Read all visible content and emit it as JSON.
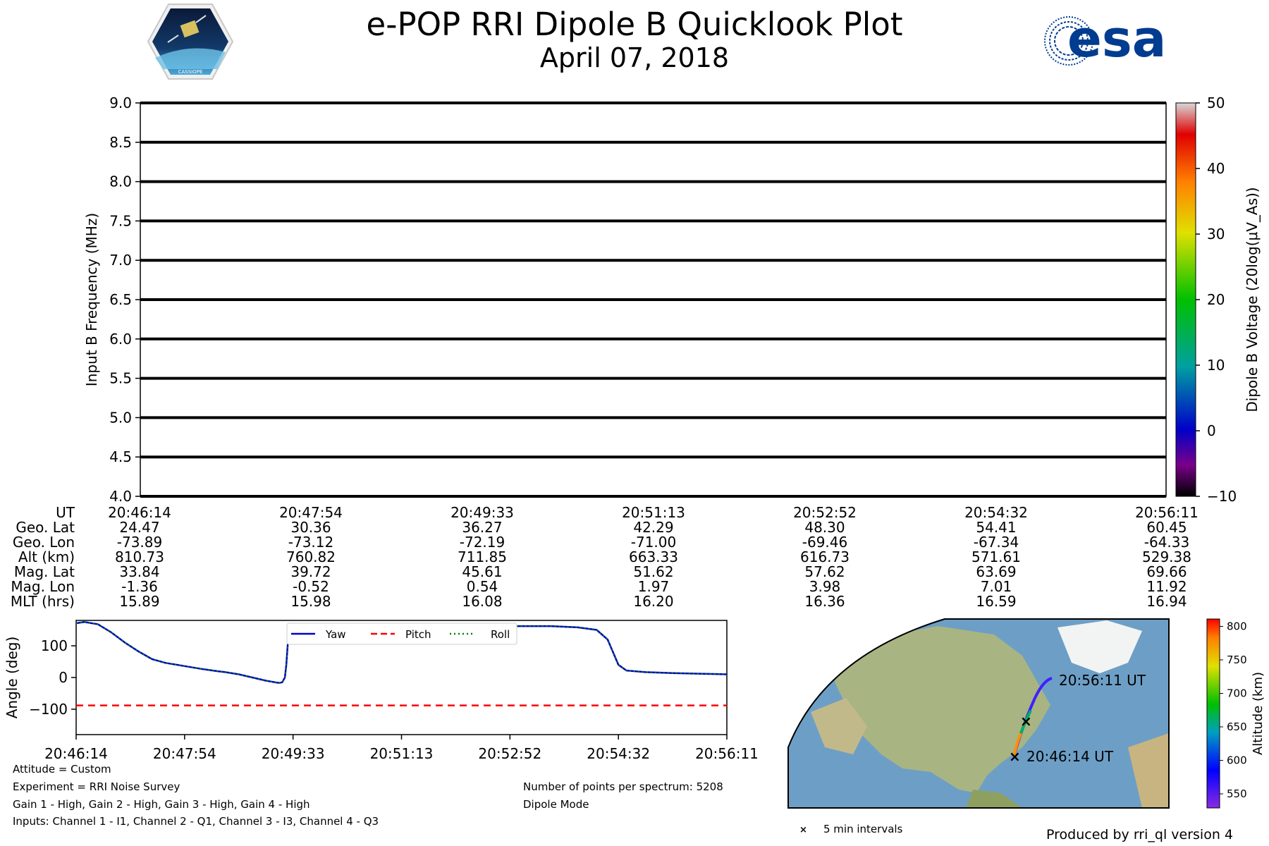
{
  "title": "e-POP RRI Dipole B Quicklook Plot",
  "date": "April 07, 2018",
  "logos": {
    "cassiope": {
      "text": "CASSIOPE"
    },
    "esa": {
      "text": "esa",
      "color": "#003c8f"
    }
  },
  "colors": {
    "yaw": "#0000cc",
    "pitch": "#ff0000",
    "roll": "#008000",
    "line": "#000000"
  },
  "chart_data": [
    {
      "type": "heatmap",
      "ylabel": "Input B Frequency (MHz)",
      "ylim": [
        4.0,
        9.0
      ],
      "yticks": [
        "4.0",
        "4.5",
        "5.0",
        "5.5",
        "6.0",
        "6.5",
        "7.0",
        "7.5",
        "8.0",
        "8.5",
        "9.0"
      ],
      "frequency_lines_mhz": [
        4.0,
        4.5,
        5.0,
        5.5,
        6.0,
        6.5,
        7.0,
        7.5,
        8.0,
        8.5,
        9.0
      ],
      "colorbar": {
        "label": "Dipole B Voltage (20log(μV_As))",
        "range": [
          -10,
          50
        ],
        "ticks": [
          "50",
          "40",
          "30",
          "20",
          "10",
          "0",
          "−10"
        ]
      }
    },
    {
      "type": "line",
      "ylabel": "Angle (deg)",
      "ylim": [
        -180,
        180
      ],
      "yticks": [
        "100",
        "0",
        "−100"
      ],
      "x": [
        "20:46:14",
        "20:47:54",
        "20:49:33",
        "20:51:13",
        "20:52:52",
        "20:54:32",
        "20:56:11"
      ],
      "legend": "top-center",
      "series": [
        {
          "name": "Yaw",
          "style": "solid",
          "points": [
            [
              0,
              171
            ],
            [
              0.03,
              175
            ],
            [
              0.08,
              168
            ],
            [
              0.13,
              142
            ],
            [
              0.18,
              110
            ],
            [
              0.23,
              82
            ],
            [
              0.28,
              58
            ],
            [
              0.33,
              46
            ],
            [
              0.4,
              36
            ],
            [
              0.47,
              26
            ],
            [
              0.52,
              20
            ],
            [
              0.55,
              17
            ],
            [
              0.6,
              10
            ],
            [
              0.66,
              -2
            ],
            [
              0.7,
              -10
            ],
            [
              0.74,
              -16
            ],
            [
              0.75,
              -17
            ],
            [
              0.76,
              -15
            ],
            [
              0.77,
              0
            ],
            [
              0.775,
              40
            ],
            [
              0.78,
              100
            ],
            [
              0.785,
              150
            ],
            [
              0.79,
              165
            ],
            [
              0.82,
              164
            ],
            [
              0.9,
              163
            ],
            [
              1.0,
              161
            ],
            [
              1.2,
              160
            ],
            [
              1.35,
              160
            ],
            [
              1.45,
              162
            ],
            [
              1.6,
              162
            ],
            [
              1.75,
              162
            ],
            [
              1.85,
              158
            ],
            [
              1.92,
              150
            ],
            [
              1.96,
              120
            ],
            [
              1.98,
              80
            ],
            [
              2.0,
              40
            ],
            [
              2.03,
              22
            ],
            [
              2.1,
              17
            ],
            [
              2.2,
              14
            ],
            [
              2.3,
              12
            ],
            [
              2.4,
              10
            ]
          ]
        },
        {
          "name": "Pitch",
          "style": "dashed",
          "constant": -88
        },
        {
          "name": "Roll",
          "style": "dotted",
          "follows": "Yaw"
        }
      ]
    },
    {
      "type": "scatter",
      "name": "orbit-track-map",
      "colorbar": {
        "label": "Altitude (km)",
        "range": [
          529,
          811
        ],
        "ticks": [
          "800",
          "750",
          "700",
          "650",
          "600",
          "550"
        ]
      },
      "annotations": {
        "start": "20:46:14 UT",
        "end": "20:56:11 UT"
      },
      "legend_text": "5 min intervals"
    }
  ],
  "ephemeris": {
    "rows": [
      {
        "label": "UT",
        "values": [
          "20:46:14",
          "20:47:54",
          "20:49:33",
          "20:51:13",
          "20:52:52",
          "20:54:32",
          "20:56:11"
        ]
      },
      {
        "label": "Geo. Lat",
        "values": [
          "24.47",
          "30.36",
          "36.27",
          "42.29",
          "48.30",
          "54.41",
          "60.45"
        ]
      },
      {
        "label": "Geo. Lon",
        "values": [
          "-73.89",
          "-73.12",
          "-72.19",
          "-71.00",
          "-69.46",
          "-67.34",
          "-64.33"
        ]
      },
      {
        "label": "Alt (km)",
        "values": [
          "810.73",
          "760.82",
          "711.85",
          "663.33",
          "616.73",
          "571.61",
          "529.38"
        ]
      },
      {
        "label": "Mag. Lat",
        "values": [
          "33.84",
          "39.72",
          "45.61",
          "51.62",
          "57.62",
          "63.69",
          "69.66"
        ]
      },
      {
        "label": "Mag. Lon",
        "values": [
          "-1.36",
          "-0.52",
          "0.54",
          "1.97",
          "3.98",
          "7.01",
          "11.92"
        ]
      },
      {
        "label": "MLT (hrs)",
        "values": [
          "15.89",
          "15.98",
          "16.08",
          "16.20",
          "16.36",
          "16.59",
          "16.94"
        ]
      }
    ]
  },
  "notes": {
    "attitude": "Attitude = Custom",
    "experiment": "Experiment = RRI Noise Survey",
    "gain": "Gain 1 - High, Gain 2 - High, Gain 3 - High, Gain 4 - High",
    "inputs": "Inputs: Channel 1 - I1, Channel 2 - Q1, Channel 3 - I3, Channel 4 - Q3",
    "points": "Number of points per spectrum: 5208",
    "mode": "Dipole Mode",
    "produced": "Produced by rri_ql version 4"
  }
}
